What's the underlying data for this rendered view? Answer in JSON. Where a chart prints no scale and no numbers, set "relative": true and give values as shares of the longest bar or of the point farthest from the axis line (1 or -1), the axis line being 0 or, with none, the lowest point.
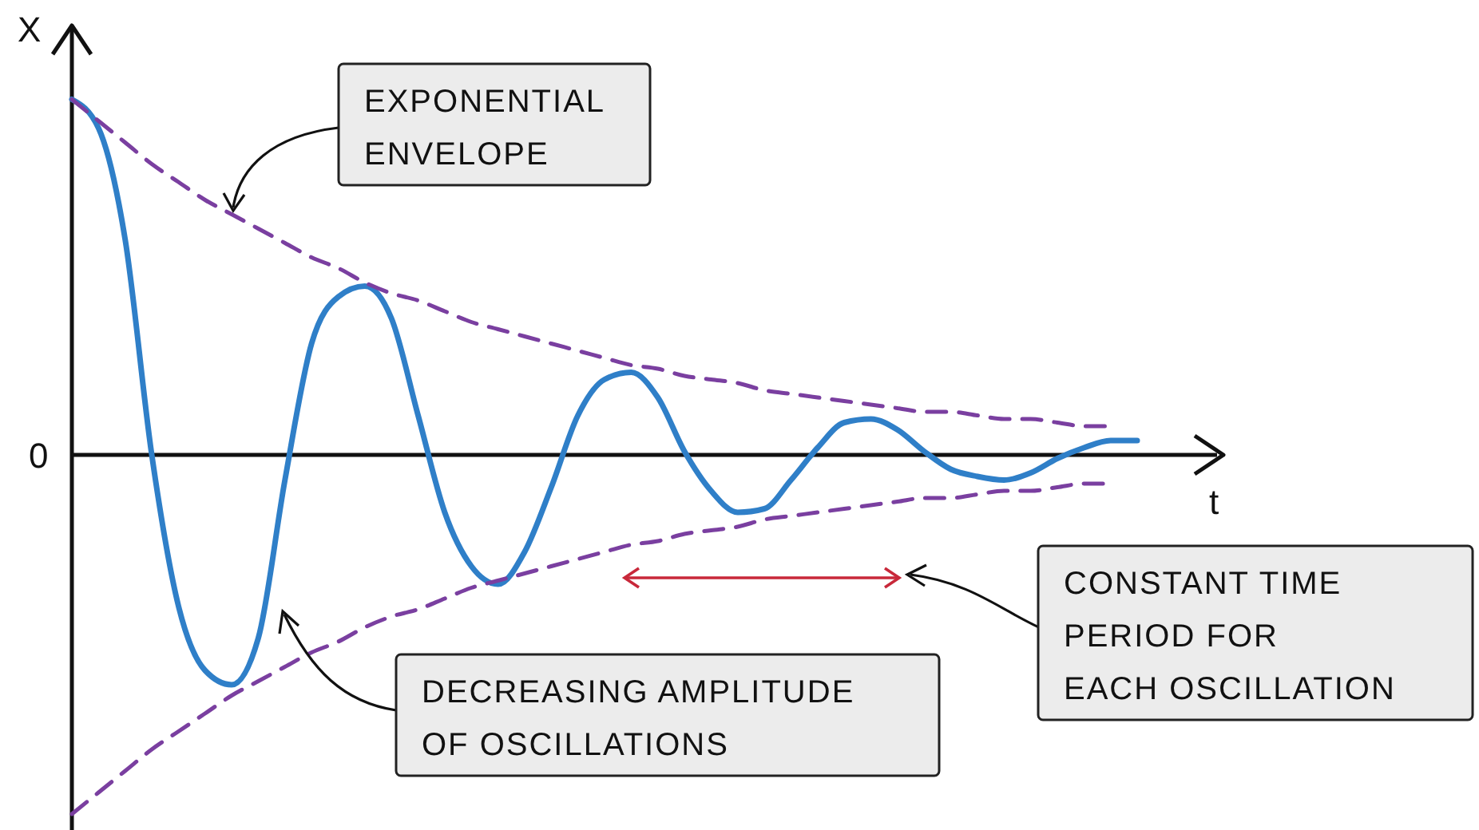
{
  "chart_data": {
    "type": "line",
    "relative": true,
    "xlabel": "t",
    "ylabel": "X",
    "categories": [
      null,
      null,
      null,
      null,
      null,
      null,
      null,
      null,
      null,
      null,
      null,
      null,
      null,
      null,
      null,
      null,
      null,
      null,
      null,
      null,
      null,
      null,
      null,
      null,
      null,
      null,
      null,
      null,
      null,
      null,
      null,
      null,
      null,
      null,
      null,
      null,
      null,
      null,
      null,
      null,
      null
    ],
    "series": [
      {
        "color": "#2f7fc8",
        "line_style": "solid",
        "values": [
          0.99,
          0.91,
          0.6,
          0,
          -0.42,
          -0.6,
          -0.64,
          -0.51,
          -0.07,
          0.31,
          0.44,
          0.47,
          0.38,
          0.11,
          -0.16,
          -0.31,
          -0.36,
          -0.27,
          -0.09,
          0.11,
          0.21,
          0.23,
          0.16,
          0.01,
          -0.1,
          -0.16,
          -0.15,
          -0.07,
          0.02,
          0.09,
          0.1,
          0.07,
          0.01,
          -0.04,
          -0.06,
          -0.07,
          -0.05,
          -0.01,
          0.02,
          0.04,
          0.04
        ]
      },
      {
        "color": "#7a3fa0",
        "line_style": "dashed",
        "values": [
          0.99,
          0.93,
          0.87,
          0.81,
          0.76,
          0.71,
          0.67,
          0.63,
          0.59,
          0.55,
          0.52,
          0.48,
          0.45,
          0.43,
          0.4,
          0.37,
          0.35,
          0.33,
          0.31,
          0.29,
          0.27,
          0.25,
          0.24,
          0.22,
          0.21,
          0.2,
          0.18,
          0.17,
          0.16,
          0.15,
          0.14,
          0.13,
          0.12,
          0.12,
          0.11,
          0.1,
          0.1,
          0.09,
          0.08,
          0.08,
          null
        ]
      },
      {
        "color": "#7a3fa0",
        "line_style": "dashed",
        "values": [
          -1,
          -0.94,
          -0.88,
          -0.82,
          -0.77,
          -0.72,
          -0.67,
          -0.63,
          -0.59,
          -0.55,
          -0.52,
          -0.48,
          -0.45,
          -0.43,
          -0.4,
          -0.37,
          -0.35,
          -0.33,
          -0.31,
          -0.29,
          -0.27,
          -0.25,
          -0.24,
          -0.22,
          -0.21,
          -0.2,
          -0.18,
          -0.17,
          -0.16,
          -0.15,
          -0.14,
          -0.13,
          -0.12,
          -0.12,
          -0.11,
          -0.1,
          -0.1,
          -0.09,
          -0.08,
          -0.08,
          null
        ]
      }
    ],
    "annotations": [
      "0",
      "EXPONENTIAL ENVELOPE",
      "DECREASING AMPLITUDE OF OSCILLATIONS",
      "CONSTANT TIME PERIOD FOR EACH OSCILLATION"
    ]
  }
}
